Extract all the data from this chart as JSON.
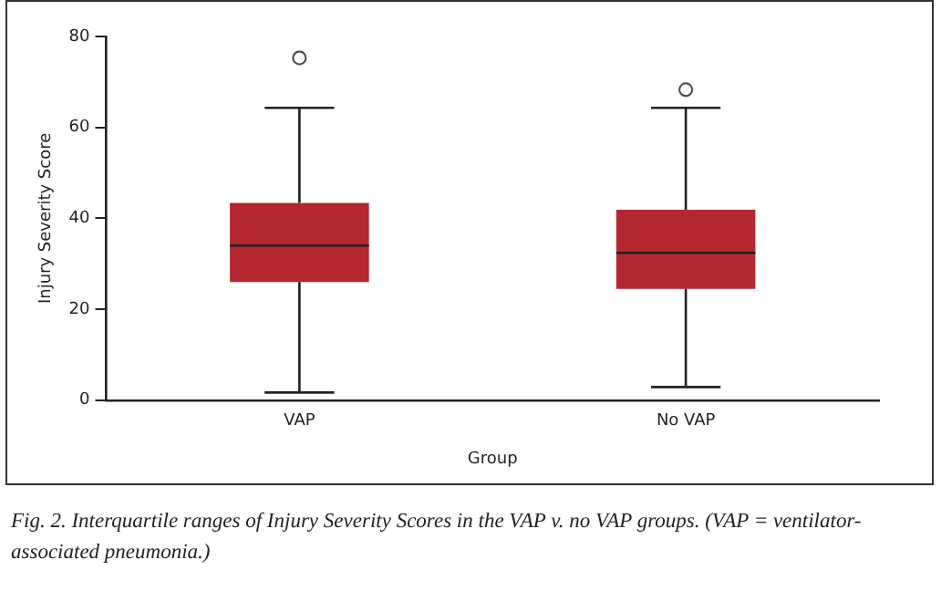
{
  "chart_data": {
    "type": "box",
    "xlabel": "Group",
    "ylabel": "Injury Severity Score",
    "categories": [
      "VAP",
      "No VAP"
    ],
    "color": "#b5272f",
    "boxes": [
      {
        "low": 1.7,
        "q1": 26,
        "median": 34,
        "q3": 43.4,
        "high": 64.3,
        "outliers": [
          75.3
        ]
      },
      {
        "low": 2.9,
        "q1": 24.5,
        "median": 32.4,
        "q3": 41.9,
        "high": 64.3,
        "outliers": [
          68.3
        ]
      }
    ],
    "ylim": [
      0,
      80
    ],
    "yticks": [
      0,
      20,
      40,
      60,
      80
    ],
    "grid": false,
    "legend": false,
    "annotations": [
      "Fig. 2. Interquartile ranges of Injury Severity Scores in the VAP v. no VAP groups. (VAP = ventilator-associated pneumonia.)"
    ]
  }
}
